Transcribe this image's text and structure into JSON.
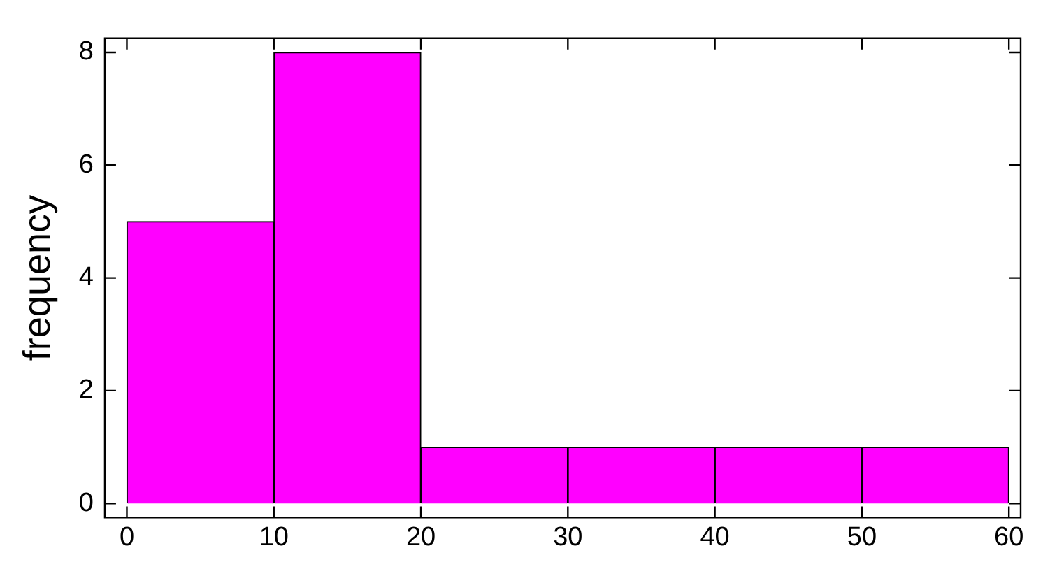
{
  "chart_data": {
    "type": "histogram",
    "ylabel": "frequency",
    "bins": [
      0,
      10,
      20,
      30,
      40,
      50,
      60
    ],
    "values": [
      5,
      8,
      1,
      1,
      1,
      1
    ],
    "color": "#ff00ff",
    "xlim": [
      -1.5,
      60.8
    ],
    "ylim": [
      -0.25,
      8.25
    ],
    "xticks": [
      0,
      10,
      20,
      30,
      40,
      50,
      60
    ],
    "yticks": [
      0,
      2,
      4,
      6,
      8
    ],
    "grid": false
  }
}
